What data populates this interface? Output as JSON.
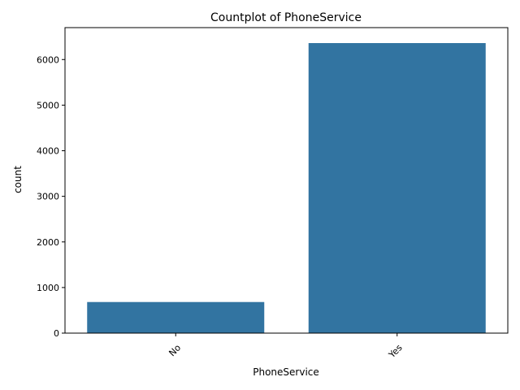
{
  "chart_data": {
    "type": "bar",
    "title": "Countplot of PhoneService",
    "xlabel": "PhoneService",
    "ylabel": "count",
    "categories": [
      "No",
      "Yes"
    ],
    "values": [
      682,
      6361
    ],
    "ylim": [
      0,
      6700
    ],
    "yticks": [
      0,
      1000,
      2000,
      3000,
      4000,
      5000,
      6000
    ],
    "xtick_rotation_deg": 45,
    "bar_color": "#3274a1",
    "grid": false,
    "legend": "none"
  }
}
